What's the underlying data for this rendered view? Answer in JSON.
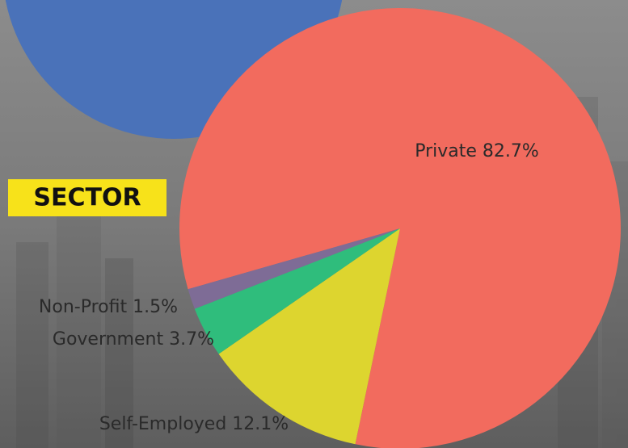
{
  "chart_data": {
    "type": "pie",
    "title": "SECTOR",
    "categories": [
      "Private",
      "Self-Employed",
      "Government",
      "Non-Profit"
    ],
    "values": [
      82.7,
      12.1,
      3.7,
      1.5
    ],
    "value_labels": [
      "82.7%",
      "12.1%",
      "3.7%",
      "1.5%"
    ],
    "colors": [
      "#f26b5e",
      "#ddd52f",
      "#2fbd7c",
      "#7e6c96"
    ]
  }
}
